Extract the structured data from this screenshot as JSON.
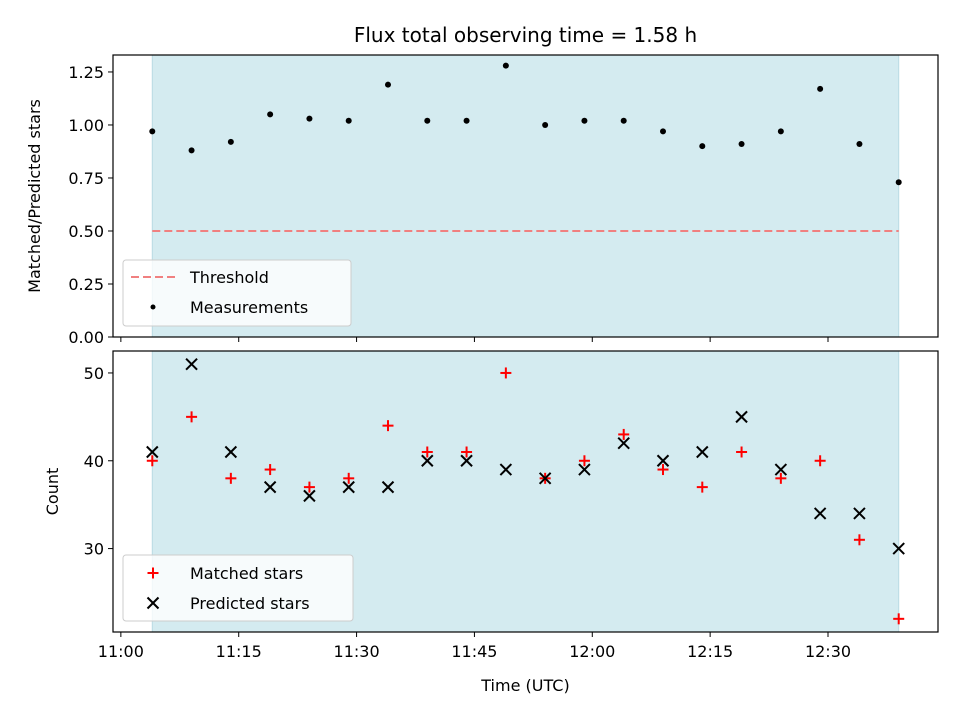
{
  "chart_data": [
    {
      "type": "scatter",
      "title": "Flux total observing time = 1.58 h",
      "ylabel": "Matched/Predicted stars",
      "xlabel": "",
      "ylim": [
        0,
        1.33
      ],
      "yticks": [
        "0.00",
        "0.25",
        "0.50",
        "0.75",
        "1.00",
        "1.25"
      ],
      "grid": false,
      "legend_position": "lower-left",
      "observing_window": {
        "start": "11:04",
        "end": "12:39",
        "color": "#d4ebf0"
      },
      "threshold": {
        "name": "Threshold",
        "value": 0.5,
        "color": "#f08080",
        "style": "dashed"
      },
      "series": [
        {
          "name": "Measurements",
          "marker": "dot",
          "color": "#000000",
          "x": [
            "11:04",
            "11:09",
            "11:14",
            "11:19",
            "11:24",
            "11:29",
            "11:34",
            "11:39",
            "11:44",
            "11:49",
            "11:54",
            "11:59",
            "12:04",
            "12:09",
            "12:14",
            "12:19",
            "12:24",
            "12:29",
            "12:34",
            "12:39"
          ],
          "values": [
            0.97,
            0.88,
            0.92,
            1.05,
            1.03,
            1.02,
            1.19,
            1.02,
            1.02,
            1.28,
            1.0,
            1.02,
            1.02,
            0.97,
            0.9,
            0.91,
            0.97,
            1.17,
            0.91,
            0.73
          ]
        }
      ]
    },
    {
      "type": "scatter",
      "title": "",
      "ylabel": "Count",
      "xlabel": "Time (UTC)",
      "ylim": [
        20.5,
        52.5
      ],
      "yticks": [
        "30",
        "40",
        "50"
      ],
      "xticks": [
        "11:00",
        "11:15",
        "11:30",
        "11:45",
        "12:00",
        "12:15",
        "12:30"
      ],
      "xlim": [
        "10:59",
        "12:44"
      ],
      "grid": false,
      "legend_position": "lower-left",
      "observing_window": {
        "start": "11:04",
        "end": "12:39",
        "color": "#d4ebf0"
      },
      "series": [
        {
          "name": "Matched stars",
          "marker": "plus",
          "color": "#ff0000",
          "x": [
            "11:04",
            "11:09",
            "11:14",
            "11:19",
            "11:24",
            "11:29",
            "11:34",
            "11:39",
            "11:44",
            "11:49",
            "11:54",
            "11:59",
            "12:04",
            "12:09",
            "12:14",
            "12:19",
            "12:24",
            "12:29",
            "12:34",
            "12:39"
          ],
          "values": [
            40,
            45,
            38,
            39,
            37,
            38,
            44,
            41,
            41,
            50,
            38,
            40,
            43,
            39,
            37,
            41,
            38,
            40,
            31,
            22
          ]
        },
        {
          "name": "Predicted stars",
          "marker": "x",
          "color": "#000000",
          "x": [
            "11:04",
            "11:09",
            "11:14",
            "11:19",
            "11:24",
            "11:29",
            "11:34",
            "11:39",
            "11:44",
            "11:49",
            "11:54",
            "11:59",
            "12:04",
            "12:09",
            "12:14",
            "12:19",
            "12:24",
            "12:29",
            "12:34",
            "12:39"
          ],
          "values": [
            41,
            51,
            41,
            37,
            36,
            37,
            37,
            40,
            40,
            39,
            38,
            39,
            42,
            40,
            41,
            45,
            39,
            34,
            34,
            30
          ]
        }
      ]
    }
  ]
}
